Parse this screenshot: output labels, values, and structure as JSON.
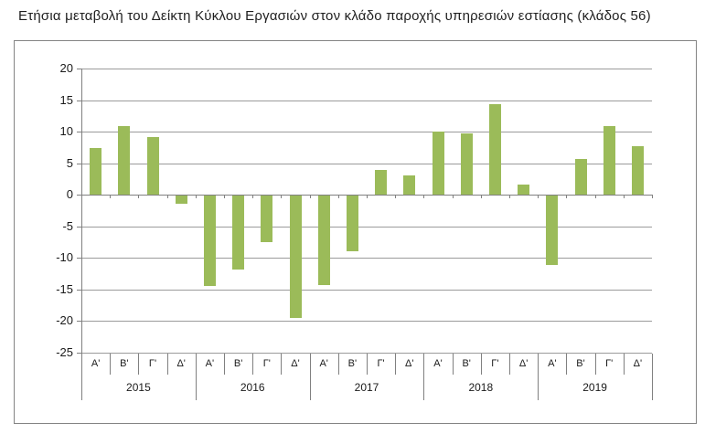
{
  "page": {
    "title": "Ετήσια μεταβολή του Δείκτη Κύκλου Εργασιών στον κλάδο παροχής υπηρεσιών εστίασης (κλάδος 56)"
  },
  "chart_data": {
    "type": "bar",
    "title": "Ετήσια μεταβολή του Δείκτη Κύκλου Εργασιών στον κλάδο παροχής υπηρεσιών εστίασης (κλάδος 56)",
    "x_quarter_labels": [
      "Α'",
      "Β'",
      "Γ'",
      "Δ'",
      "Α'",
      "Β'",
      "Γ'",
      "Δ'",
      "Α'",
      "Β'",
      "Γ'",
      "Δ'",
      "Α'",
      "Β'",
      "Γ'",
      "Δ'",
      "Α'",
      "Β'",
      "Γ'",
      "Δ'"
    ],
    "x_year_labels": [
      "2015",
      "2016",
      "2017",
      "2018",
      "2019"
    ],
    "values": [
      7.4,
      10.9,
      9.2,
      -1.3,
      -14.3,
      -11.7,
      -7.4,
      -19.3,
      -14.2,
      -8.8,
      4.0,
      3.0,
      10.0,
      9.7,
      14.4,
      1.6,
      -10.9,
      5.7,
      10.9,
      7.7
    ],
    "yticks": [
      20,
      15,
      10,
      5,
      0,
      -5,
      -10,
      -15,
      -20,
      -25
    ],
    "ylim": [
      -25,
      20
    ],
    "ytick_step": 5,
    "grid": true,
    "legend": false,
    "bar_color": "#9BBB59",
    "gridline_color": "#9b9b9b",
    "axis_color": "#808080",
    "text_color": "#1a1a1a"
  }
}
